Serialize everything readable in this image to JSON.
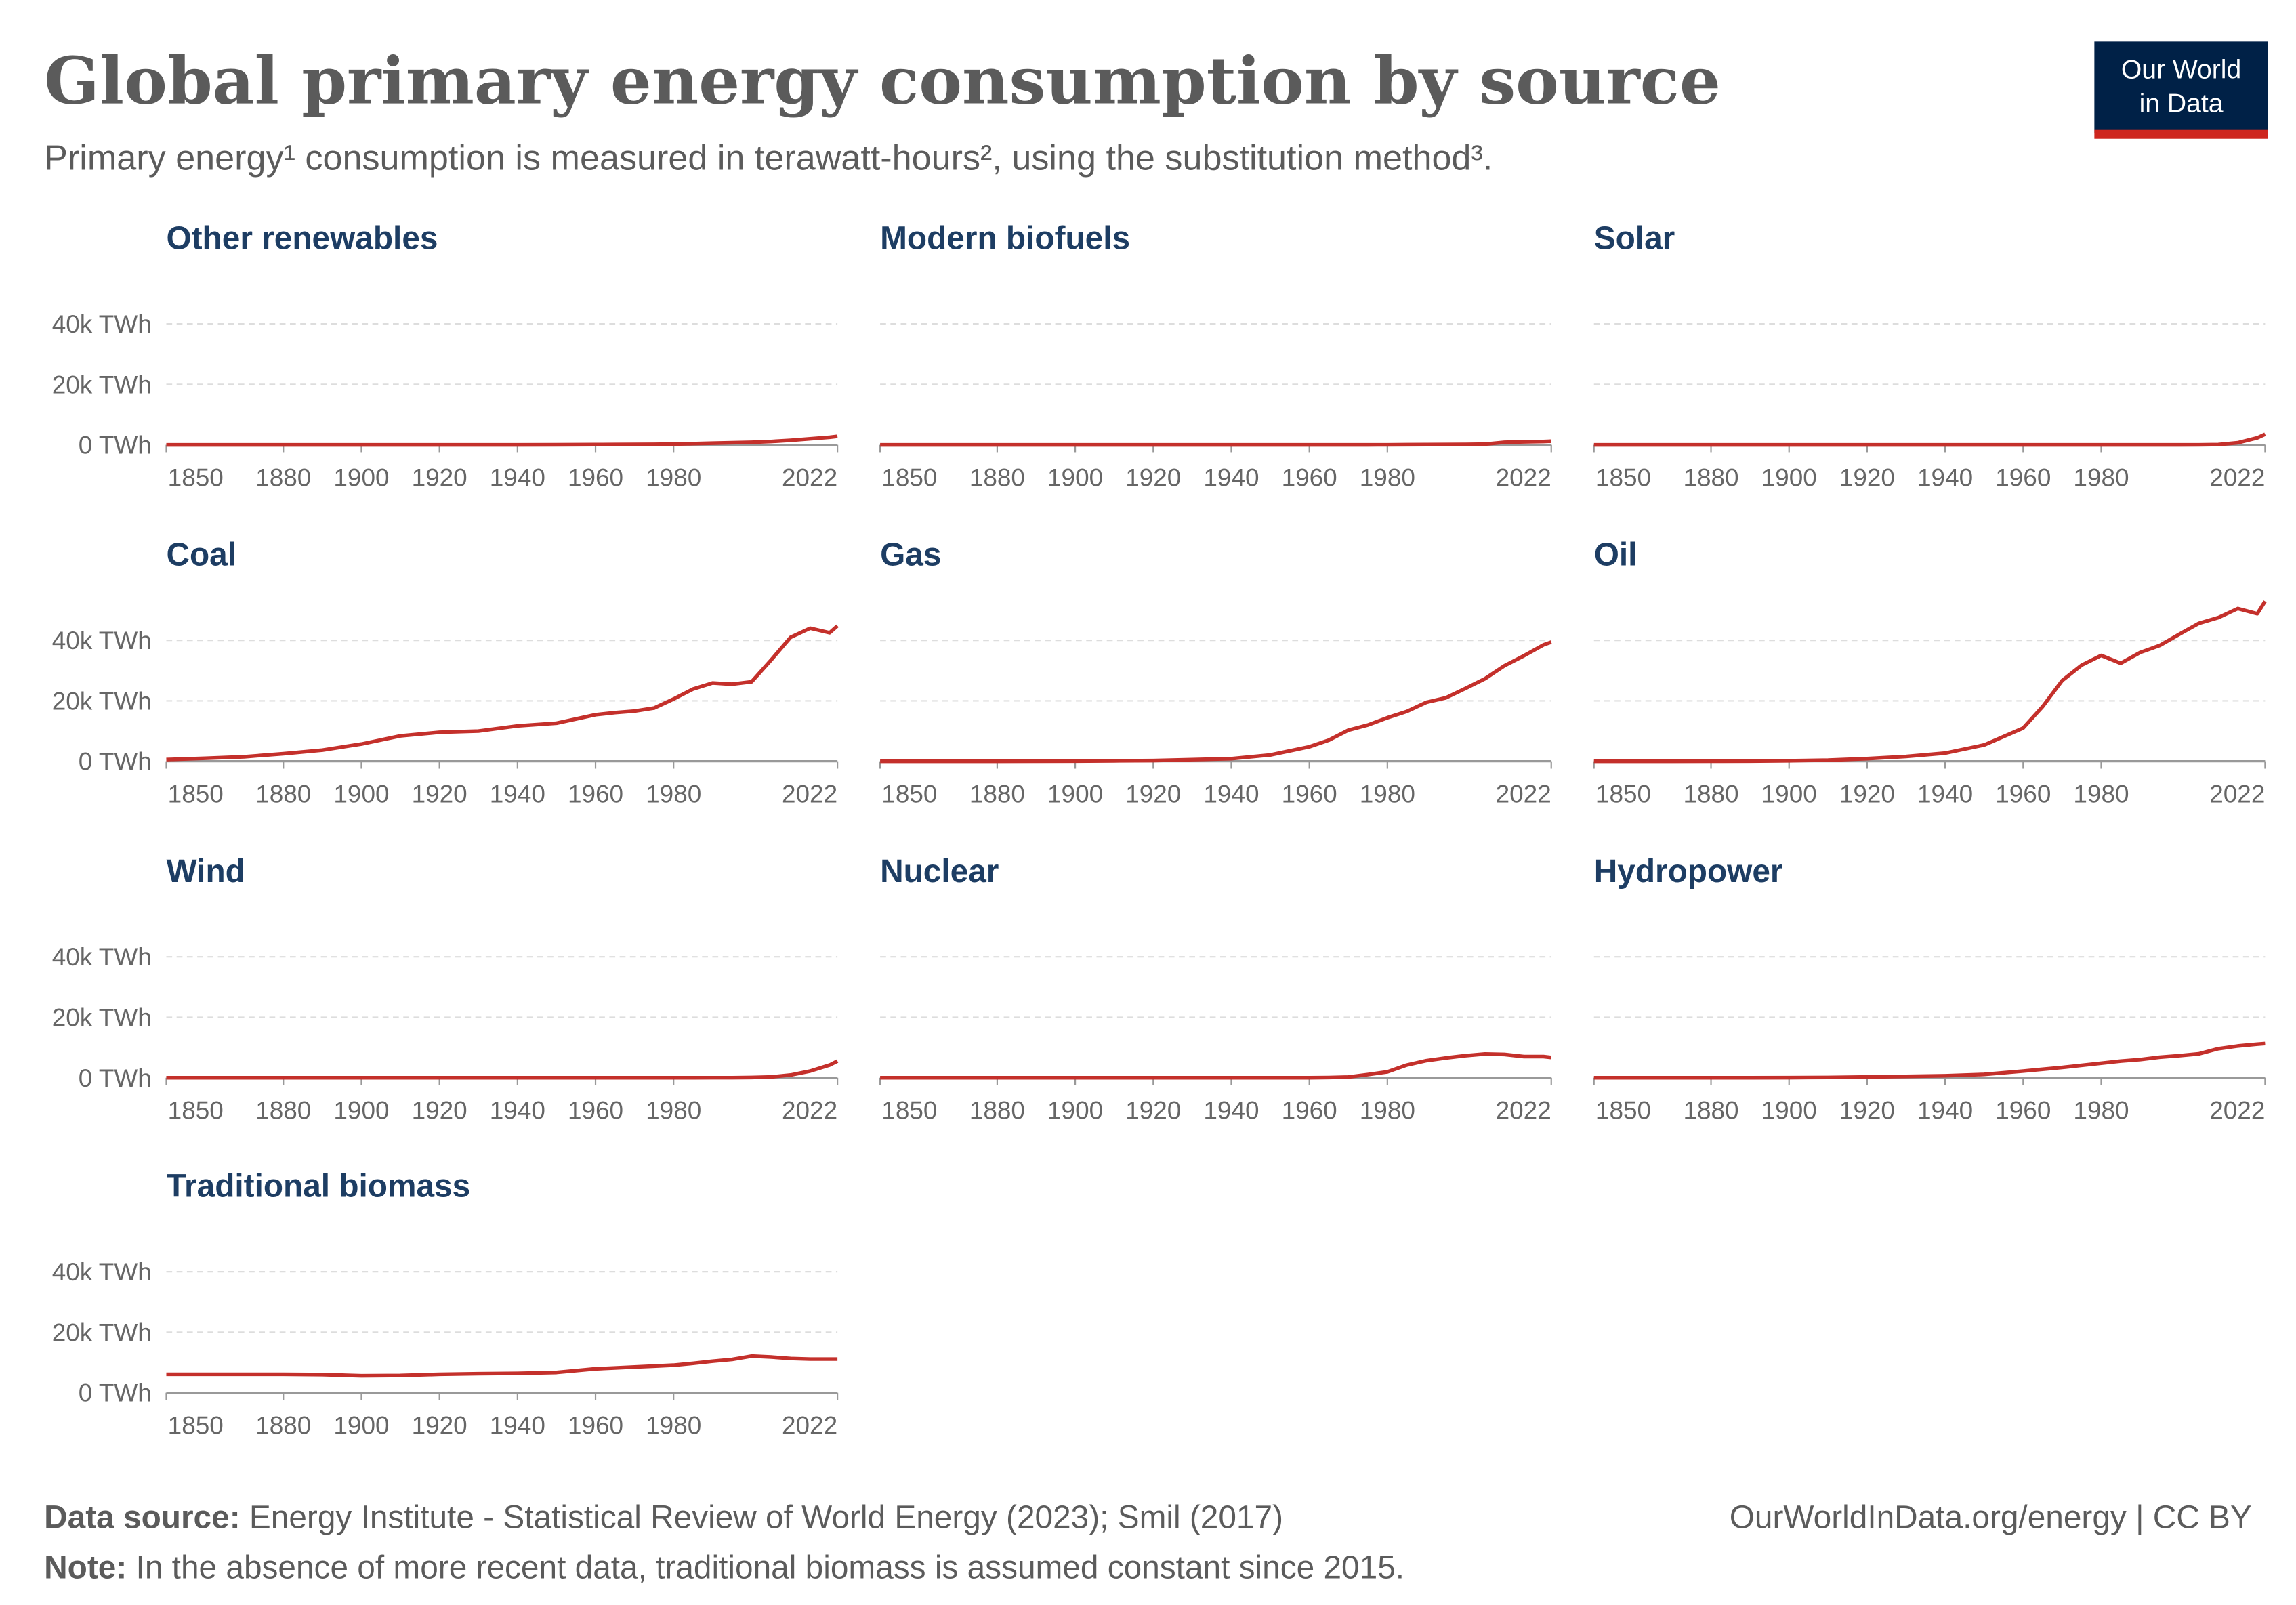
{
  "title": "Global primary energy consumption by source",
  "subtitle": "Primary energy¹ consumption is measured in terawatt-hours², using the substitution method³.",
  "logo": [
    "Our World",
    "in Data"
  ],
  "footer": {
    "source_label": "Data source:",
    "source": "Energy Institute - Statistical Review of World Energy (2023); Smil (2017)",
    "note_label": "Note:",
    "note": "In the absence of more recent data, traditional biomass is assumed constant since 2015.",
    "url": "OurWorldInData.org/energy | CC BY"
  },
  "chart_data": [
    {
      "type": "line",
      "title": "Other renewables",
      "color": "#c4302b",
      "x": [
        1850,
        1860,
        1870,
        1880,
        1890,
        1900,
        1910,
        1920,
        1930,
        1940,
        1950,
        1960,
        1965,
        1970,
        1975,
        1980,
        1985,
        1990,
        1995,
        2000,
        2005,
        2010,
        2015,
        2020,
        2022
      ],
      "values": [
        0,
        0,
        0,
        0,
        0,
        0,
        0,
        0,
        0,
        0,
        20,
        80,
        100,
        130,
        180,
        250,
        400,
        550,
        700,
        850,
        1100,
        1500,
        2000,
        2500,
        2800
      ],
      "xlim": [
        1850,
        2022
      ],
      "xticks": [
        1850,
        1880,
        1900,
        1920,
        1940,
        1960,
        1980,
        2022
      ],
      "ylim": [
        0,
        55000
      ],
      "yticks": [
        {
          "value": 0,
          "label": "0 TWh"
        },
        {
          "value": 20000,
          "label": "20k TWh"
        },
        {
          "value": 40000,
          "label": "40k TWh"
        }
      ]
    },
    {
      "type": "line",
      "title": "Modern biofuels",
      "color": "#c4302b",
      "x": [
        1850,
        1860,
        1870,
        1880,
        1890,
        1900,
        1910,
        1920,
        1930,
        1940,
        1950,
        1960,
        1965,
        1970,
        1975,
        1980,
        1985,
        1990,
        1995,
        2000,
        2005,
        2010,
        2015,
        2020,
        2022
      ],
      "values": [
        0,
        0,
        0,
        0,
        0,
        0,
        0,
        0,
        0,
        0,
        0,
        0,
        0,
        0,
        0,
        10,
        50,
        80,
        120,
        130,
        240,
        850,
        1000,
        1100,
        1200
      ],
      "xlim": [
        1850,
        2022
      ],
      "xticks": [
        1850,
        1880,
        1900,
        1920,
        1940,
        1960,
        1980,
        2022
      ],
      "ylim": [
        0,
        55000
      ],
      "yticks": [
        0,
        20000,
        40000
      ]
    },
    {
      "type": "line",
      "title": "Solar",
      "color": "#c4302b",
      "x": [
        1850,
        1860,
        1870,
        1880,
        1890,
        1900,
        1910,
        1920,
        1930,
        1940,
        1950,
        1960,
        1965,
        1970,
        1975,
        1980,
        1985,
        1990,
        1995,
        2000,
        2005,
        2010,
        2015,
        2020,
        2022
      ],
      "values": [
        0,
        0,
        0,
        0,
        0,
        0,
        0,
        0,
        0,
        0,
        0,
        0,
        0,
        0,
        0,
        0,
        0,
        0,
        0,
        0,
        10,
        90,
        700,
        2300,
        3500
      ],
      "xlim": [
        1850,
        2022
      ],
      "xticks": [
        1850,
        1880,
        1900,
        1920,
        1940,
        1960,
        1980,
        2022
      ],
      "ylim": [
        0,
        55000
      ],
      "yticks": [
        0,
        20000,
        40000
      ]
    },
    {
      "type": "line",
      "title": "Coal",
      "color": "#c4302b",
      "x": [
        1850,
        1860,
        1870,
        1880,
        1890,
        1900,
        1910,
        1920,
        1930,
        1940,
        1950,
        1960,
        1965,
        1970,
        1975,
        1980,
        1985,
        1990,
        1995,
        2000,
        2005,
        2010,
        2015,
        2020,
        2022
      ],
      "values": [
        570,
        1000,
        1500,
        2500,
        3700,
        5700,
        8400,
        9600,
        10000,
        11700,
        12600,
        15400,
        16100,
        16600,
        17600,
        20600,
        23900,
        25900,
        25500,
        26300,
        33500,
        41000,
        44000,
        42500,
        44800
      ],
      "xlim": [
        1850,
        2022
      ],
      "xticks": [
        1850,
        1880,
        1900,
        1920,
        1940,
        1960,
        1980,
        2022
      ],
      "ylim": [
        0,
        55000
      ],
      "yticks": [
        {
          "value": 0,
          "label": "0 TWh"
        },
        {
          "value": 20000,
          "label": "20k TWh"
        },
        {
          "value": 40000,
          "label": "40k TWh"
        }
      ]
    },
    {
      "type": "line",
      "title": "Gas",
      "color": "#c4302b",
      "x": [
        1850,
        1860,
        1870,
        1880,
        1890,
        1900,
        1910,
        1920,
        1930,
        1940,
        1950,
        1960,
        1965,
        1970,
        1975,
        1980,
        1985,
        1990,
        1995,
        2000,
        2005,
        2010,
        2015,
        2020,
        2022
      ],
      "values": [
        0,
        0,
        0,
        10,
        30,
        60,
        150,
        230,
        550,
        870,
        2100,
        4800,
        7000,
        10300,
        12000,
        14400,
        16500,
        19500,
        21000,
        24100,
        27300,
        31600,
        34900,
        38500,
        39400
      ],
      "xlim": [
        1850,
        2022
      ],
      "xticks": [
        1850,
        1880,
        1900,
        1920,
        1940,
        1960,
        1980,
        2022
      ],
      "ylim": [
        0,
        55000
      ],
      "yticks": [
        0,
        20000,
        40000
      ]
    },
    {
      "type": "line",
      "title": "Oil",
      "color": "#c4302b",
      "x": [
        1850,
        1860,
        1870,
        1880,
        1890,
        1900,
        1910,
        1920,
        1930,
        1940,
        1950,
        1960,
        1965,
        1970,
        1975,
        1980,
        1985,
        1990,
        1995,
        2000,
        2005,
        2010,
        2015,
        2020,
        2022
      ],
      "values": [
        0,
        0,
        5,
        30,
        70,
        180,
        380,
        880,
        1600,
        2700,
        5400,
        11000,
        18100,
        26700,
        31800,
        35000,
        32400,
        36000,
        38300,
        42000,
        45600,
        47500,
        50500,
        48800,
        52900
      ],
      "xlim": [
        1850,
        2022
      ],
      "xticks": [
        1850,
        1880,
        1900,
        1920,
        1940,
        1960,
        1980,
        2022
      ],
      "ylim": [
        0,
        55000
      ],
      "yticks": [
        0,
        20000,
        40000
      ]
    },
    {
      "type": "line",
      "title": "Wind",
      "color": "#c4302b",
      "x": [
        1850,
        1860,
        1870,
        1880,
        1890,
        1900,
        1910,
        1920,
        1930,
        1940,
        1950,
        1960,
        1965,
        1970,
        1975,
        1980,
        1985,
        1990,
        1995,
        2000,
        2005,
        2010,
        2015,
        2020,
        2022
      ],
      "values": [
        0,
        0,
        0,
        0,
        0,
        0,
        0,
        0,
        0,
        0,
        0,
        0,
        0,
        0,
        0,
        0,
        0,
        10,
        20,
        90,
        270,
        900,
        2200,
        4200,
        5500
      ],
      "xlim": [
        1850,
        2022
      ],
      "xticks": [
        1850,
        1880,
        1900,
        1920,
        1940,
        1960,
        1980,
        2022
      ],
      "ylim": [
        0,
        55000
      ],
      "yticks": [
        {
          "value": 0,
          "label": "0 TWh"
        },
        {
          "value": 20000,
          "label": "20k TWh"
        },
        {
          "value": 40000,
          "label": "40k TWh"
        }
      ]
    },
    {
      "type": "line",
      "title": "Nuclear",
      "color": "#c4302b",
      "x": [
        1850,
        1860,
        1870,
        1880,
        1890,
        1900,
        1910,
        1920,
        1930,
        1940,
        1950,
        1960,
        1965,
        1970,
        1975,
        1980,
        1985,
        1990,
        1995,
        2000,
        2005,
        2010,
        2015,
        2020,
        2022
      ],
      "values": [
        0,
        0,
        0,
        0,
        0,
        0,
        0,
        0,
        0,
        0,
        0,
        1,
        70,
        230,
        1050,
        1950,
        4200,
        5650,
        6550,
        7300,
        7850,
        7700,
        7000,
        7000,
        6700
      ],
      "xlim": [
        1850,
        2022
      ],
      "xticks": [
        1850,
        1880,
        1900,
        1920,
        1940,
        1960,
        1980,
        2022
      ],
      "ylim": [
        0,
        55000
      ],
      "yticks": [
        0,
        20000,
        40000
      ]
    },
    {
      "type": "line",
      "title": "Hydropower",
      "color": "#c4302b",
      "x": [
        1850,
        1860,
        1870,
        1880,
        1890,
        1900,
        1910,
        1920,
        1930,
        1940,
        1950,
        1960,
        1965,
        1970,
        1975,
        1980,
        1985,
        1990,
        1995,
        2000,
        2005,
        2010,
        2015,
        2020,
        2022
      ],
      "values": [
        0,
        0,
        0,
        0,
        0,
        30,
        100,
        250,
        450,
        650,
        1100,
        2200,
        2800,
        3400,
        4100,
        4800,
        5500,
        6000,
        6800,
        7300,
        7900,
        9600,
        10500,
        11100,
        11300
      ],
      "xlim": [
        1850,
        2022
      ],
      "xticks": [
        1850,
        1880,
        1900,
        1920,
        1940,
        1960,
        1980,
        2022
      ],
      "ylim": [
        0,
        55000
      ],
      "yticks": [
        0,
        20000,
        40000
      ]
    },
    {
      "type": "line",
      "title": "Traditional biomass",
      "color": "#c4302b",
      "x": [
        1850,
        1860,
        1870,
        1880,
        1890,
        1900,
        1910,
        1920,
        1930,
        1940,
        1950,
        1960,
        1965,
        1970,
        1975,
        1980,
        1985,
        1990,
        1995,
        2000,
        2005,
        2010,
        2015,
        2020,
        2022
      ],
      "values": [
        6100,
        6100,
        6100,
        6100,
        6000,
        5600,
        5700,
        6100,
        6300,
        6400,
        6700,
        7900,
        8200,
        8500,
        8800,
        9100,
        9700,
        10400,
        11000,
        12100,
        11800,
        11300,
        11100,
        11100,
        11100
      ],
      "xlim": [
        1850,
        2022
      ],
      "xticks": [
        1850,
        1880,
        1900,
        1920,
        1940,
        1960,
        1980,
        2022
      ],
      "ylim": [
        0,
        55000
      ],
      "yticks": [
        {
          "value": 0,
          "label": "0 TWh"
        },
        {
          "value": 20000,
          "label": "20k TWh"
        },
        {
          "value": 40000,
          "label": "40k TWh"
        }
      ]
    }
  ]
}
